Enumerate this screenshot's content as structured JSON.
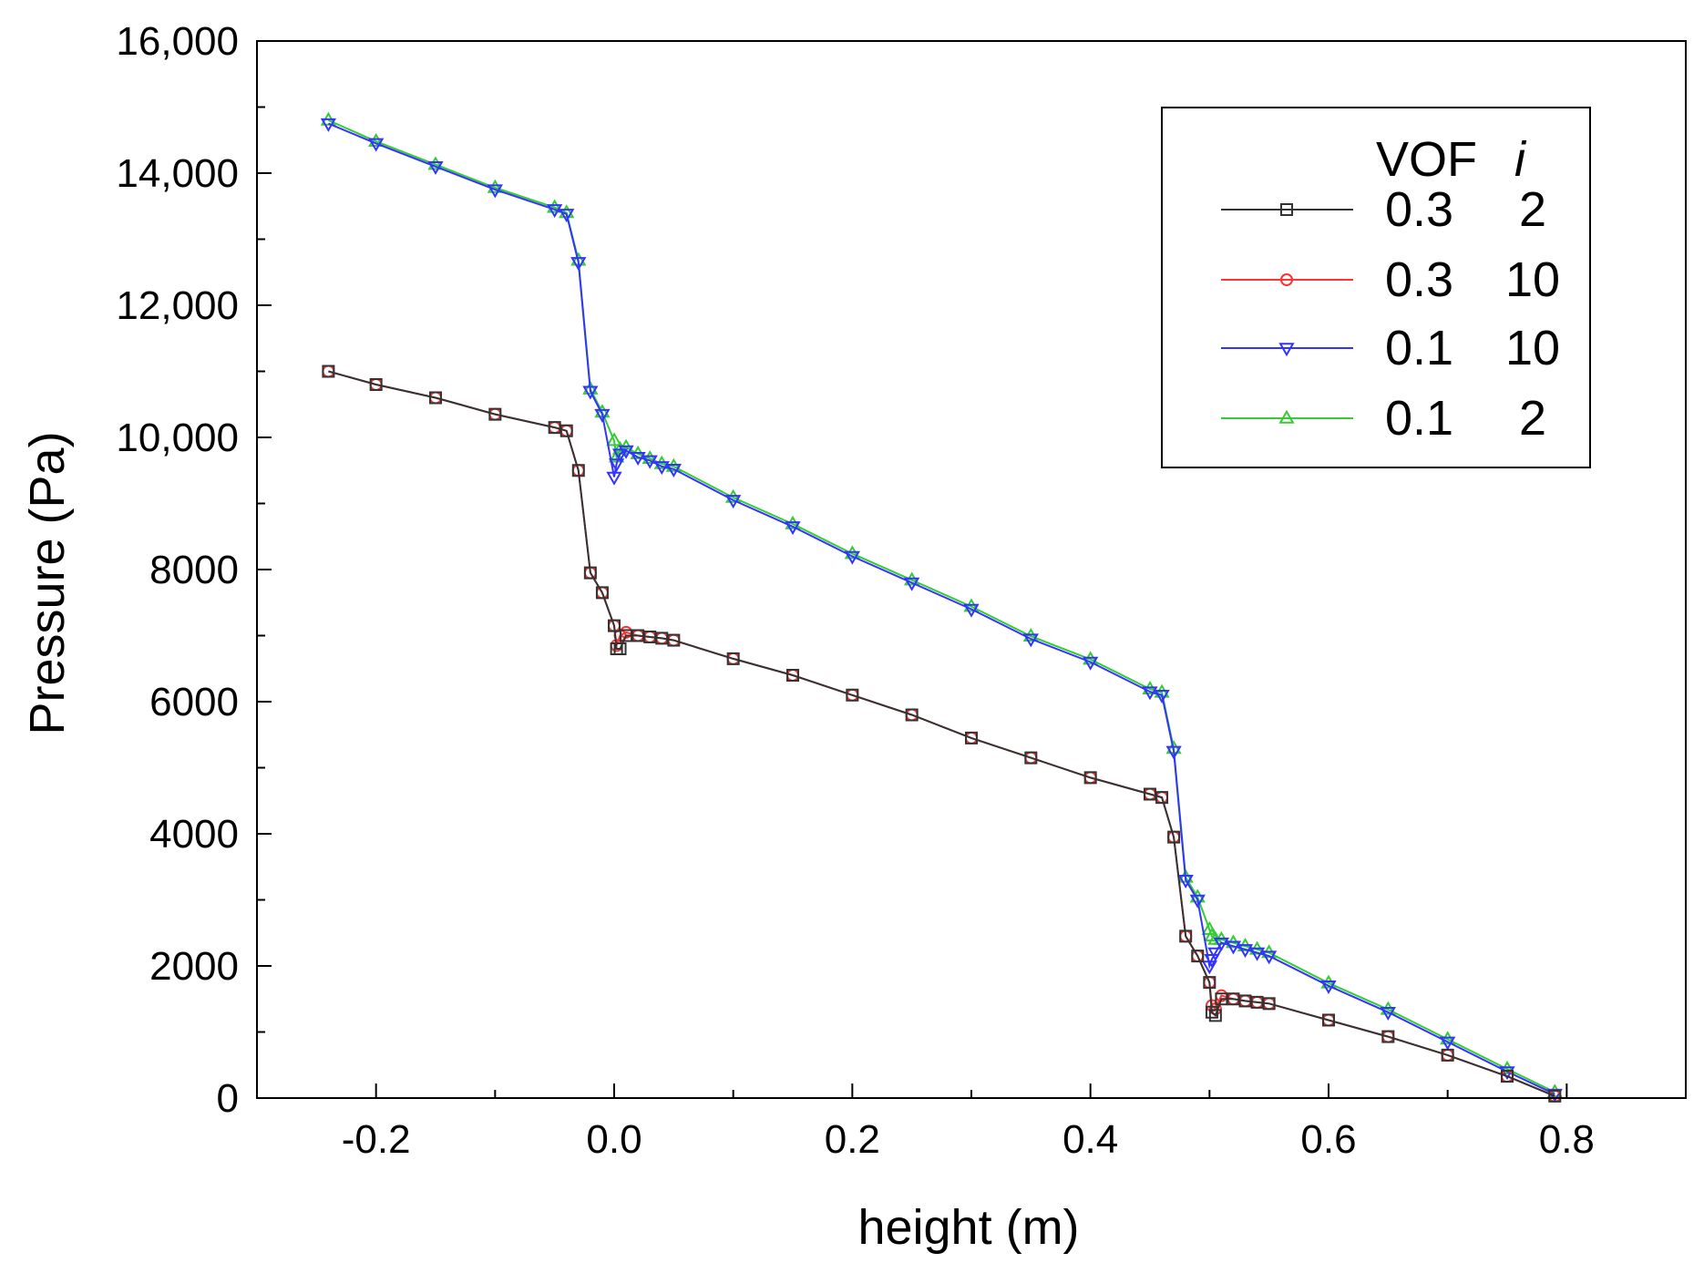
{
  "chart_data": {
    "type": "line",
    "title": "",
    "xlabel": "height (m)",
    "ylabel": "Pressure (Pa)",
    "xlim": [
      -0.3,
      0.9
    ],
    "ylim": [
      0,
      16000
    ],
    "x_ticks": [
      -0.2,
      0.0,
      0.2,
      0.4,
      0.6,
      0.8
    ],
    "x_tick_labels": [
      "-0.2",
      "0.0",
      "0.2",
      "0.4",
      "0.6",
      "0.8"
    ],
    "y_ticks": [
      0,
      2000,
      4000,
      6000,
      8000,
      10000,
      12000,
      14000,
      16000
    ],
    "y_tick_labels": [
      "0",
      "2000",
      "4000",
      "6000",
      "8000",
      "10,000",
      "12,000",
      "14,000",
      "16,000"
    ],
    "legend": {
      "position": "top-right",
      "header_col1": "VOF",
      "header_col2": "i"
    },
    "series": [
      {
        "name": "0.3 2",
        "vof": "0.3",
        "i": "2",
        "color": "#333333",
        "marker": "square",
        "x": [
          -0.24,
          -0.2,
          -0.15,
          -0.1,
          -0.05,
          -0.04,
          -0.03,
          -0.02,
          -0.01,
          0.0,
          0.002,
          0.005,
          0.01,
          0.02,
          0.03,
          0.04,
          0.05,
          0.1,
          0.15,
          0.2,
          0.25,
          0.3,
          0.35,
          0.4,
          0.45,
          0.46,
          0.47,
          0.48,
          0.49,
          0.5,
          0.502,
          0.505,
          0.51,
          0.52,
          0.53,
          0.54,
          0.55,
          0.6,
          0.65,
          0.7,
          0.75,
          0.79
        ],
        "y": [
          11000,
          10800,
          10600,
          10350,
          10150,
          10100,
          9500,
          7950,
          7650,
          7150,
          6800,
          6800,
          7000,
          7000,
          6980,
          6960,
          6930,
          6650,
          6400,
          6100,
          5800,
          5450,
          5150,
          4850,
          4600,
          4550,
          3950,
          2450,
          2150,
          1750,
          1300,
          1250,
          1500,
          1500,
          1470,
          1450,
          1430,
          1180,
          930,
          650,
          330,
          30
        ]
      },
      {
        "name": "0.3 10",
        "vof": "0.3",
        "i": "10",
        "color": "#ff3333",
        "marker": "circle",
        "x": [
          -0.24,
          -0.2,
          -0.15,
          -0.1,
          -0.05,
          -0.04,
          -0.03,
          -0.02,
          -0.01,
          0.0,
          0.002,
          0.005,
          0.01,
          0.02,
          0.03,
          0.04,
          0.05,
          0.1,
          0.15,
          0.2,
          0.25,
          0.3,
          0.35,
          0.4,
          0.45,
          0.46,
          0.47,
          0.48,
          0.49,
          0.5,
          0.502,
          0.505,
          0.51,
          0.52,
          0.53,
          0.54,
          0.55,
          0.6,
          0.65,
          0.7,
          0.75,
          0.79
        ],
        "y": [
          11000,
          10800,
          10600,
          10350,
          10150,
          10100,
          9500,
          7950,
          7650,
          7150,
          6850,
          7000,
          7050,
          7000,
          6980,
          6960,
          6930,
          6650,
          6400,
          6100,
          5800,
          5450,
          5150,
          4850,
          4600,
          4550,
          3950,
          2450,
          2150,
          1750,
          1400,
          1350,
          1550,
          1500,
          1470,
          1450,
          1430,
          1180,
          930,
          650,
          330,
          30
        ]
      },
      {
        "name": "0.1 10",
        "vof": "0.1",
        "i": "10",
        "color": "#3333ff",
        "marker": "triangle-down",
        "x": [
          -0.24,
          -0.2,
          -0.15,
          -0.1,
          -0.05,
          -0.04,
          -0.03,
          -0.02,
          -0.01,
          0.0,
          0.002,
          0.005,
          0.01,
          0.02,
          0.03,
          0.04,
          0.05,
          0.1,
          0.15,
          0.2,
          0.25,
          0.3,
          0.35,
          0.4,
          0.45,
          0.46,
          0.47,
          0.48,
          0.49,
          0.5,
          0.502,
          0.505,
          0.51,
          0.52,
          0.53,
          0.54,
          0.55,
          0.6,
          0.65,
          0.7,
          0.75,
          0.79
        ],
        "y": [
          14750,
          14450,
          14100,
          13750,
          13450,
          13380,
          12650,
          10700,
          10350,
          9400,
          9600,
          9750,
          9800,
          9700,
          9650,
          9560,
          9520,
          9050,
          8650,
          8200,
          7800,
          7400,
          6950,
          6600,
          6150,
          6100,
          5250,
          3300,
          3000,
          2000,
          2100,
          2200,
          2350,
          2300,
          2250,
          2200,
          2150,
          1700,
          1300,
          850,
          400,
          60
        ]
      },
      {
        "name": "0.1 2",
        "vof": "0.1",
        "i": "2",
        "color": "#33cc33",
        "marker": "triangle-up",
        "x": [
          -0.24,
          -0.2,
          -0.15,
          -0.1,
          -0.05,
          -0.04,
          -0.03,
          -0.02,
          -0.01,
          0.0,
          0.002,
          0.005,
          0.01,
          0.02,
          0.03,
          0.04,
          0.05,
          0.1,
          0.15,
          0.2,
          0.25,
          0.3,
          0.35,
          0.4,
          0.45,
          0.46,
          0.47,
          0.48,
          0.49,
          0.5,
          0.502,
          0.505,
          0.51,
          0.52,
          0.53,
          0.54,
          0.55,
          0.6,
          0.65,
          0.7,
          0.75,
          0.79
        ],
        "y": [
          14800,
          14480,
          14130,
          13780,
          13480,
          13400,
          12680,
          10730,
          10380,
          9950,
          9700,
          9820,
          9850,
          9750,
          9680,
          9600,
          9560,
          9090,
          8690,
          8240,
          7840,
          7440,
          6990,
          6640,
          6190,
          6140,
          5290,
          3340,
          3040,
          2550,
          2450,
          2400,
          2400,
          2350,
          2300,
          2250,
          2200,
          1740,
          1340,
          890,
          440,
          90
        ]
      }
    ]
  }
}
